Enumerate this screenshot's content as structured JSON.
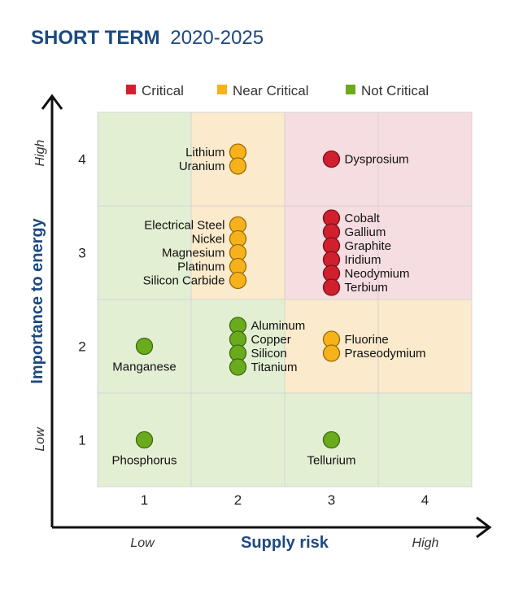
{
  "title": {
    "bold": "SHORT TERM",
    "light": "2020-2025"
  },
  "legend": [
    {
      "label": "Critical",
      "color": "#d0202e"
    },
    {
      "label": "Near Critical",
      "color": "#f7b21b"
    },
    {
      "label": "Not Critical",
      "color": "#6aab1e"
    }
  ],
  "axes": {
    "ylabel": "Importance to energy",
    "xlabel": "Supply risk",
    "y_low": "Low",
    "y_high": "High",
    "x_low": "Low",
    "x_high": "High",
    "x_ticks": [
      "1",
      "2",
      "3",
      "4"
    ],
    "y_ticks": [
      "1",
      "2",
      "3",
      "4"
    ]
  },
  "colors": {
    "critical_zone": "#f6dde2",
    "near_critical_zone": "#fbeacb",
    "not_critical_zone": "#e3efd3",
    "axis_blue": "#1c4a80",
    "critical": "#d0202e",
    "near_critical": "#f7b21b",
    "not_critical": "#6aab1e"
  },
  "chart_data": {
    "type": "scatter",
    "title": "SHORT TERM 2020-2025",
    "xlabel": "Supply risk",
    "ylabel": "Importance to energy",
    "xlim": [
      0.5,
      4.5
    ],
    "ylim": [
      0.5,
      4.5
    ],
    "zones": [
      {
        "x": 1,
        "y": 4,
        "category": "Not Critical"
      },
      {
        "x": 2,
        "y": 4,
        "category": "Near Critical"
      },
      {
        "x": 3,
        "y": 4,
        "category": "Critical"
      },
      {
        "x": 4,
        "y": 4,
        "category": "Critical"
      },
      {
        "x": 1,
        "y": 3,
        "category": "Not Critical"
      },
      {
        "x": 2,
        "y": 3,
        "category": "Near Critical"
      },
      {
        "x": 3,
        "y": 3,
        "category": "Critical"
      },
      {
        "x": 4,
        "y": 3,
        "category": "Critical"
      },
      {
        "x": 1,
        "y": 2,
        "category": "Not Critical"
      },
      {
        "x": 2,
        "y": 2,
        "category": "Not Critical"
      },
      {
        "x": 3,
        "y": 2,
        "category": "Near Critical"
      },
      {
        "x": 4,
        "y": 2,
        "category": "Near Critical"
      },
      {
        "x": 1,
        "y": 1,
        "category": "Not Critical"
      },
      {
        "x": 2,
        "y": 1,
        "category": "Not Critical"
      },
      {
        "x": 3,
        "y": 1,
        "category": "Not Critical"
      },
      {
        "x": 4,
        "y": 1,
        "category": "Not Critical"
      }
    ],
    "groups": [
      {
        "x": 2,
        "y": 4,
        "category": "Near Critical",
        "items": [
          "Lithium",
          "Uranium"
        ]
      },
      {
        "x": 3,
        "y": 4,
        "category": "Critical",
        "items": [
          "Dysprosium"
        ]
      },
      {
        "x": 2,
        "y": 3,
        "category": "Near Critical",
        "items": [
          "Electrical Steel",
          "Nickel",
          "Magnesium",
          "Platinum",
          "Silicon Carbide"
        ]
      },
      {
        "x": 3,
        "y": 3,
        "category": "Critical",
        "items": [
          "Cobalt",
          "Gallium",
          "Graphite",
          "Iridium",
          "Neodymium",
          "Terbium"
        ]
      },
      {
        "x": 1,
        "y": 2,
        "category": "Not Critical",
        "items": [
          "Manganese"
        ]
      },
      {
        "x": 2,
        "y": 2,
        "category": "Not Critical",
        "items": [
          "Aluminum",
          "Copper",
          "Silicon",
          "Titanium"
        ]
      },
      {
        "x": 3,
        "y": 2,
        "category": "Near Critical",
        "items": [
          "Fluorine",
          "Praseodymium"
        ]
      },
      {
        "x": 1,
        "y": 1,
        "category": "Not Critical",
        "items": [
          "Phosphorus"
        ]
      },
      {
        "x": 3,
        "y": 1,
        "category": "Not Critical",
        "items": [
          "Tellurium"
        ]
      }
    ]
  }
}
